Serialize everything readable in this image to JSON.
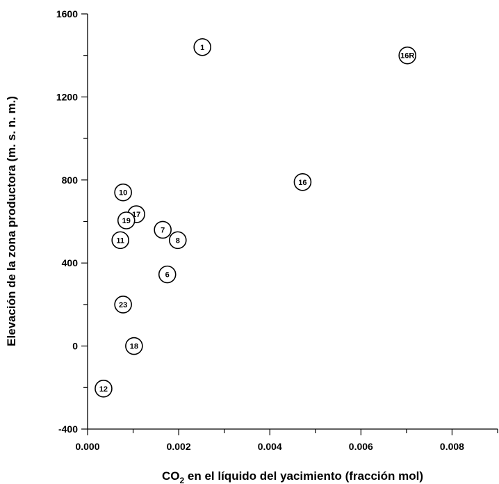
{
  "chart_data": {
    "type": "scatter",
    "title": "",
    "xlabel_main": "CO",
    "xlabel_sub": "2",
    "xlabel_rest": " en el líquido del yacimiento (fracción mol)",
    "ylabel": "Elevación de la zona productora (m. s. n. m.)",
    "xlim": [
      0,
      0.009
    ],
    "ylim": [
      -400,
      1600
    ],
    "xticks": [
      0.0,
      0.002,
      0.004,
      0.006,
      0.008
    ],
    "xtick_labels": [
      "0.000",
      "0.002",
      "0.004",
      "0.006",
      "0.008"
    ],
    "yticks": [
      -400,
      0,
      400,
      800,
      1200,
      1600
    ],
    "ytick_labels": [
      "-400",
      "0",
      "400",
      "800",
      "1200",
      "1600"
    ],
    "grid": false,
    "points": [
      {
        "label": "1",
        "x": 0.00252,
        "y": 1440
      },
      {
        "label": "16R",
        "x": 0.00702,
        "y": 1400
      },
      {
        "label": "16",
        "x": 0.00472,
        "y": 790
      },
      {
        "label": "10",
        "x": 0.00078,
        "y": 740
      },
      {
        "label": "17",
        "x": 0.00107,
        "y": 635
      },
      {
        "label": "19",
        "x": 0.00085,
        "y": 605
      },
      {
        "label": "7",
        "x": 0.00165,
        "y": 560
      },
      {
        "label": "11",
        "x": 0.00072,
        "y": 510
      },
      {
        "label": "8",
        "x": 0.00198,
        "y": 510
      },
      {
        "label": "6",
        "x": 0.00175,
        "y": 345
      },
      {
        "label": "23",
        "x": 0.00078,
        "y": 200
      },
      {
        "label": "18",
        "x": 0.00102,
        "y": 0
      },
      {
        "label": "12",
        "x": 0.00035,
        "y": -205
      }
    ]
  }
}
